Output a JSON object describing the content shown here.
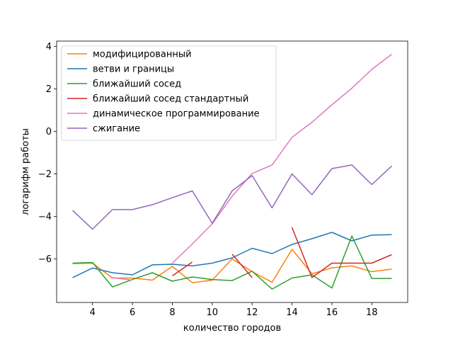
{
  "chart_data": {
    "type": "line",
    "title": "",
    "xlabel": "количество городов",
    "ylabel": "логарифм работы",
    "xlim": [
      2.2,
      19.8
    ],
    "ylim": [
      -8.05,
      4.25
    ],
    "xticks": [
      4,
      6,
      8,
      10,
      12,
      14,
      16,
      18
    ],
    "yticks": [
      -6,
      -4,
      -2,
      0,
      2,
      4
    ],
    "grid": false,
    "legend_position": "top-left",
    "series": [
      {
        "name": "модифицированный",
        "color": "#ff7f0e",
        "x": [
          3,
          4,
          5,
          6,
          7,
          8,
          9,
          10,
          11,
          12,
          13,
          14,
          15,
          16,
          17,
          18,
          19
        ],
        "y": [
          -6.22,
          -6.2,
          -6.9,
          -6.9,
          -7.0,
          -6.35,
          -7.12,
          -7.0,
          -6.0,
          -6.6,
          -7.1,
          -5.55,
          -6.7,
          -6.42,
          -6.33,
          -6.6,
          -6.48
        ]
      },
      {
        "name": "ветви и границы",
        "color": "#1f77b4",
        "x": [
          3,
          4,
          5,
          6,
          7,
          8,
          9,
          10,
          11,
          12,
          13,
          14,
          15,
          16,
          17,
          18,
          19
        ],
        "y": [
          -6.88,
          -6.43,
          -6.65,
          -6.75,
          -6.28,
          -6.25,
          -6.33,
          -6.2,
          -5.95,
          -5.5,
          -5.75,
          -5.32,
          -5.05,
          -4.75,
          -5.15,
          -4.88,
          -4.86
        ]
      },
      {
        "name": "ближайший сосед",
        "color": "#2ca02c",
        "x": [
          3,
          4,
          5,
          6,
          7,
          8,
          9,
          10,
          11,
          12,
          13,
          14,
          15,
          16,
          17,
          18,
          19
        ],
        "y": [
          -6.2,
          -6.17,
          -7.32,
          -6.97,
          -6.65,
          -7.05,
          -6.85,
          -6.97,
          -7.02,
          -6.58,
          -7.42,
          -6.9,
          -6.75,
          -7.37,
          -4.92,
          -6.92,
          -6.92
        ]
      },
      {
        "name": "ближайший сосед стандартный",
        "color": "#d62728",
        "x": [
          3,
          4,
          5,
          6,
          7,
          8,
          9,
          10,
          11,
          12,
          13,
          14,
          15,
          16,
          17,
          18,
          19
        ],
        "y": [
          null,
          null,
          null,
          null,
          null,
          -6.8,
          -6.15,
          null,
          -5.78,
          -6.88,
          null,
          -4.52,
          -6.88,
          -6.2,
          -6.2,
          -6.2,
          -5.8
        ]
      },
      {
        "name": "динамическое программирование",
        "color": "#e377c2",
        "x": [
          3,
          4,
          5,
          6,
          7,
          8,
          9,
          10,
          11,
          12,
          13,
          14,
          15,
          16,
          17,
          18,
          19
        ],
        "y": [
          null,
          null,
          -6.88,
          -7.0,
          null,
          -6.2,
          -5.3,
          -4.35,
          -3.05,
          -1.98,
          -1.58,
          -0.28,
          0.43,
          1.25,
          2.03,
          2.92,
          3.63
        ]
      },
      {
        "name": "сжигание",
        "color": "#9467bd",
        "x": [
          3,
          4,
          5,
          6,
          7,
          8,
          9,
          10,
          11,
          12,
          13,
          14,
          15,
          16,
          17,
          18,
          19
        ],
        "y": [
          -3.72,
          -4.6,
          -3.68,
          -3.68,
          -3.45,
          -3.12,
          -2.8,
          -4.32,
          -2.8,
          -2.08,
          -3.6,
          -2.0,
          -2.98,
          -1.75,
          -1.58,
          -2.5,
          -1.63
        ]
      }
    ]
  }
}
